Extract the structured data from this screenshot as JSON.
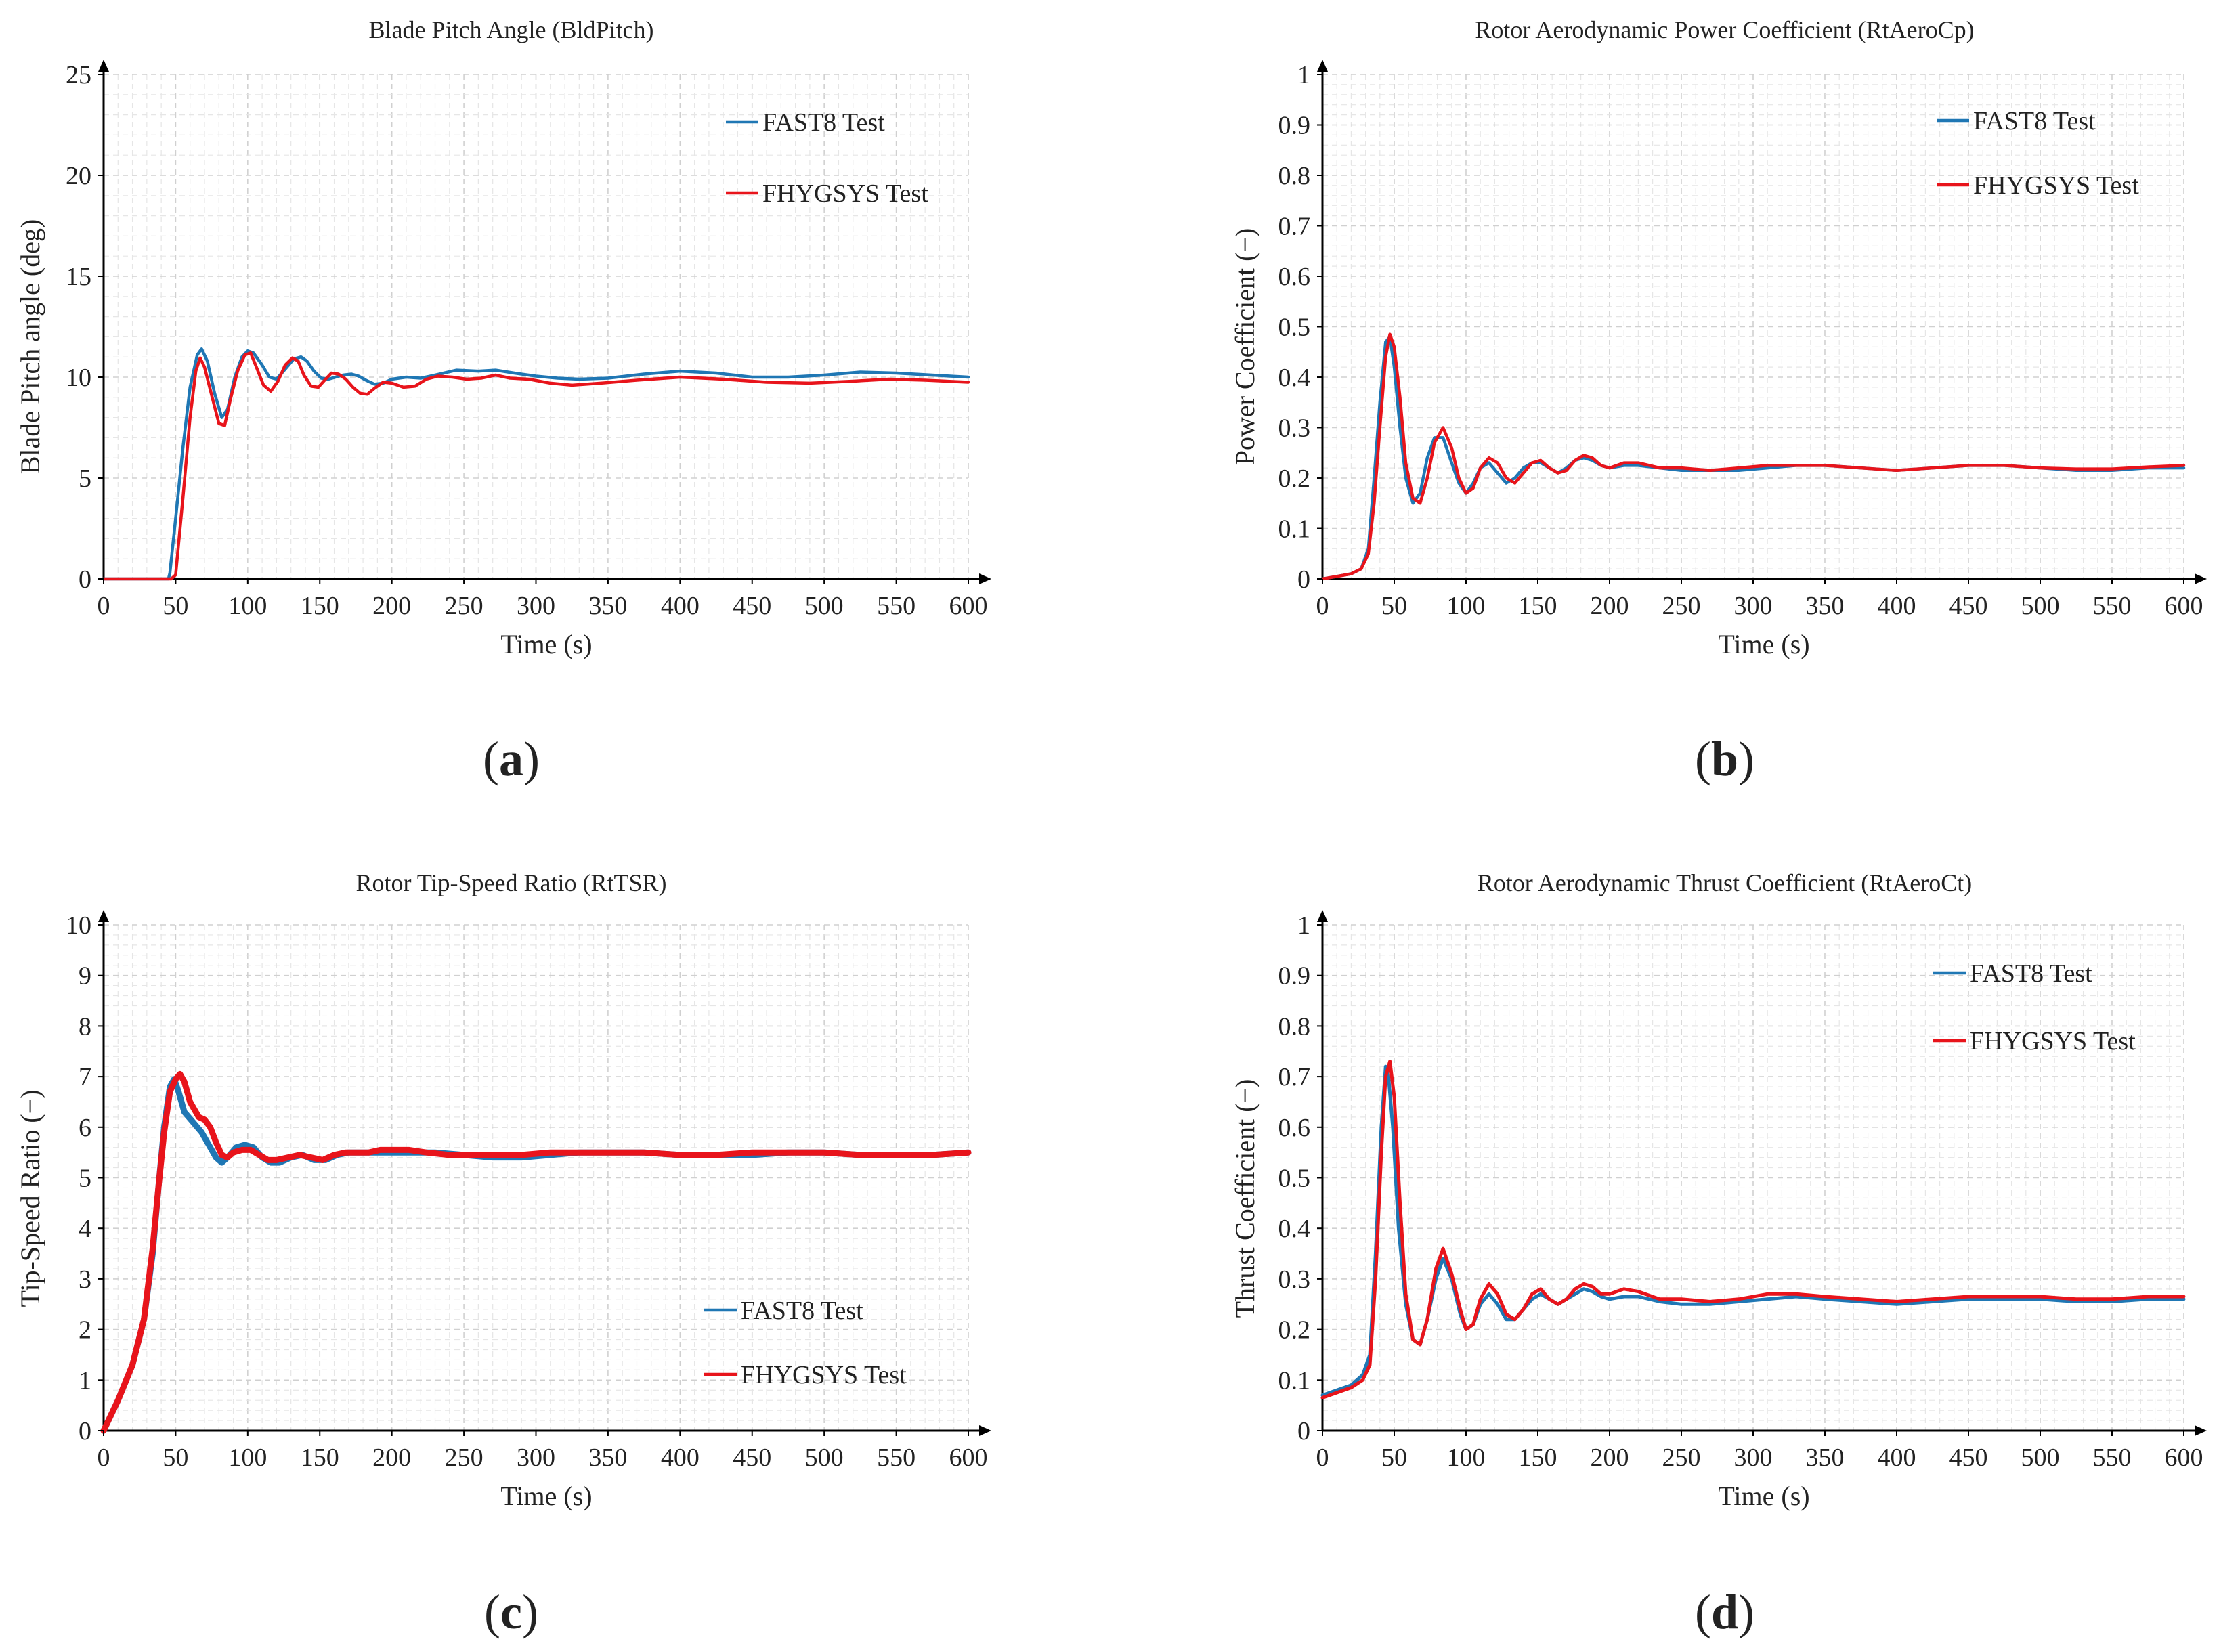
{
  "chart_data": [
    {
      "panel": "(a)",
      "panel_letter": "a",
      "type": "line",
      "title": "Blade Pitch Angle (BldPitch)",
      "xlabel": "Time (s)",
      "ylabel": "Blade Pitch angle (deg)",
      "xlim": [
        0,
        600
      ],
      "ylim": [
        0,
        25
      ],
      "xticks": [
        0,
        50,
        100,
        150,
        200,
        250,
        300,
        350,
        400,
        450,
        500,
        550,
        600
      ],
      "yticks": [
        0,
        5,
        10,
        15,
        20,
        25
      ],
      "ytick_labels": [
        "0",
        "5",
        "10",
        "15",
        "20",
        "25"
      ],
      "grid": true,
      "legend_position": "top-right",
      "series": [
        {
          "name": "FAST8 Test",
          "color": "#1f77b4",
          "x": [
            0,
            45,
            46,
            50,
            55,
            60,
            65,
            68,
            72,
            77,
            82,
            86,
            91,
            96,
            100,
            104,
            110,
            115,
            120,
            126,
            132,
            137,
            141,
            146,
            151,
            156,
            161,
            166,
            172,
            177,
            182,
            188,
            194,
            200,
            210,
            220,
            230,
            245,
            260,
            272,
            285,
            300,
            315,
            330,
            350,
            375,
            400,
            425,
            450,
            475,
            500,
            525,
            550,
            575,
            600
          ],
          "y": [
            0,
            0,
            0.3,
            3,
            6.5,
            9.5,
            11.1,
            11.4,
            10.8,
            9.2,
            8.0,
            8.4,
            10.0,
            11.0,
            11.3,
            11.2,
            10.6,
            10.0,
            9.9,
            10.4,
            10.9,
            11.0,
            10.8,
            10.3,
            9.95,
            9.9,
            10.0,
            10.1,
            10.15,
            10.05,
            9.85,
            9.65,
            9.7,
            9.9,
            10.0,
            9.95,
            10.1,
            10.35,
            10.3,
            10.35,
            10.2,
            10.05,
            9.95,
            9.9,
            9.95,
            10.15,
            10.3,
            10.2,
            10.0,
            10.0,
            10.1,
            10.25,
            10.2,
            10.1,
            10.0
          ]
        },
        {
          "name": "FHYGSYS Test",
          "color": "#e8141b",
          "x": [
            0,
            44,
            47,
            50,
            55,
            60,
            64,
            67,
            70,
            75,
            80,
            84,
            88,
            93,
            98,
            102,
            106,
            111,
            116,
            121,
            126,
            131,
            135,
            139,
            144,
            149,
            154,
            158,
            163,
            168,
            173,
            178,
            183,
            188,
            194,
            200,
            208,
            216,
            224,
            232,
            242,
            252,
            262,
            272,
            282,
            295,
            310,
            325,
            345,
            370,
            400,
            430,
            460,
            490,
            520,
            545,
            570,
            600
          ],
          "y": [
            0,
            0,
            0,
            0.2,
            4,
            8,
            10.3,
            10.95,
            10.5,
            9.1,
            7.7,
            7.6,
            8.9,
            10.3,
            11.1,
            11.2,
            10.5,
            9.6,
            9.3,
            9.8,
            10.6,
            10.95,
            10.8,
            10.1,
            9.55,
            9.5,
            9.9,
            10.2,
            10.15,
            9.9,
            9.5,
            9.2,
            9.15,
            9.45,
            9.75,
            9.7,
            9.5,
            9.55,
            9.9,
            10.05,
            10.0,
            9.9,
            9.95,
            10.1,
            9.95,
            9.9,
            9.7,
            9.6,
            9.7,
            9.85,
            10.0,
            9.9,
            9.75,
            9.7,
            9.8,
            9.9,
            9.85,
            9.75
          ]
        }
      ]
    },
    {
      "panel": "(b)",
      "panel_letter": "b",
      "type": "line",
      "title": "Rotor Aerodynamic Power Coefficient (RtAeroCp)",
      "xlabel": "Time (s)",
      "ylabel": "Power Coefficient (−)",
      "xlim": [
        0,
        600
      ],
      "ylim": [
        0,
        1
      ],
      "xticks": [
        0,
        50,
        100,
        150,
        200,
        250,
        300,
        350,
        400,
        450,
        500,
        550,
        600
      ],
      "yticks": [
        0,
        0.1,
        0.2,
        0.3,
        0.4,
        0.5,
        0.6,
        0.7,
        0.8,
        0.9,
        1
      ],
      "ytick_labels": [
        "0",
        "0.1",
        "0.2",
        "0.3",
        "0.4",
        "0.5",
        "0.6",
        "0.7",
        "0.8",
        "0.9",
        "1"
      ],
      "grid": true,
      "legend_position": "top-right",
      "series": [
        {
          "name": "FAST8 Test",
          "color": "#1f77b4",
          "x": [
            0,
            10,
            20,
            27,
            32,
            36,
            40,
            44,
            47,
            50,
            54,
            58,
            63,
            68,
            73,
            78,
            84,
            90,
            95,
            100,
            105,
            110,
            116,
            122,
            128,
            134,
            140,
            146,
            152,
            158,
            164,
            170,
            176,
            182,
            188,
            194,
            200,
            210,
            220,
            235,
            250,
            270,
            290,
            310,
            330,
            350,
            375,
            400,
            425,
            450,
            475,
            500,
            525,
            550,
            575,
            600
          ],
          "y": [
            0.0,
            0.005,
            0.01,
            0.02,
            0.06,
            0.2,
            0.35,
            0.47,
            0.48,
            0.42,
            0.3,
            0.2,
            0.15,
            0.17,
            0.24,
            0.28,
            0.28,
            0.23,
            0.19,
            0.17,
            0.19,
            0.22,
            0.23,
            0.21,
            0.19,
            0.2,
            0.22,
            0.23,
            0.23,
            0.22,
            0.21,
            0.22,
            0.235,
            0.24,
            0.235,
            0.225,
            0.22,
            0.225,
            0.225,
            0.22,
            0.215,
            0.215,
            0.215,
            0.22,
            0.225,
            0.225,
            0.22,
            0.215,
            0.22,
            0.225,
            0.225,
            0.22,
            0.215,
            0.215,
            0.22,
            0.22
          ]
        },
        {
          "name": "FHYGSYS Test",
          "color": "#e8141b",
          "x": [
            0,
            10,
            20,
            27,
            32,
            36,
            40,
            44,
            47,
            50,
            54,
            58,
            63,
            68,
            73,
            78,
            84,
            90,
            95,
            100,
            105,
            110,
            116,
            122,
            128,
            134,
            140,
            146,
            152,
            158,
            164,
            170,
            176,
            182,
            188,
            194,
            200,
            210,
            220,
            235,
            250,
            270,
            290,
            310,
            330,
            350,
            375,
            400,
            425,
            450,
            475,
            500,
            525,
            550,
            575,
            600
          ],
          "y": [
            0.0,
            0.005,
            0.01,
            0.02,
            0.05,
            0.15,
            0.3,
            0.44,
            0.485,
            0.46,
            0.36,
            0.23,
            0.16,
            0.15,
            0.2,
            0.27,
            0.3,
            0.26,
            0.2,
            0.17,
            0.18,
            0.22,
            0.24,
            0.23,
            0.2,
            0.19,
            0.21,
            0.23,
            0.235,
            0.22,
            0.21,
            0.215,
            0.235,
            0.245,
            0.24,
            0.225,
            0.22,
            0.23,
            0.23,
            0.22,
            0.22,
            0.215,
            0.22,
            0.225,
            0.225,
            0.225,
            0.22,
            0.215,
            0.22,
            0.225,
            0.225,
            0.22,
            0.218,
            0.218,
            0.222,
            0.225
          ]
        }
      ]
    },
    {
      "panel": "(c)",
      "panel_letter": "c",
      "type": "line",
      "title": "Rotor Tip-Speed Ratio (RtTSR)",
      "xlabel": "Time (s)",
      "ylabel": "Tip-Speed Ratio (−)",
      "xlim": [
        0,
        600
      ],
      "ylim": [
        0,
        10
      ],
      "xticks": [
        0,
        50,
        100,
        150,
        200,
        250,
        300,
        350,
        400,
        450,
        500,
        550,
        600
      ],
      "yticks": [
        0,
        1,
        2,
        3,
        4,
        5,
        6,
        7,
        8,
        9,
        10
      ],
      "ytick_labels": [
        "0",
        "1",
        "2",
        "3",
        "4",
        "5",
        "6",
        "7",
        "8",
        "9",
        "10"
      ],
      "grid": true,
      "legend_position": "bottom-right",
      "series": [
        {
          "name": "FAST8 Test",
          "color": "#1f77b4",
          "x": [
            0,
            10,
            20,
            28,
            34,
            38,
            42,
            46,
            49,
            52,
            56,
            62,
            68,
            74,
            78,
            82,
            86,
            92,
            98,
            104,
            110,
            116,
            122,
            130,
            138,
            146,
            154,
            162,
            170,
            180,
            190,
            200,
            215,
            230,
            250,
            270,
            290,
            310,
            330,
            350,
            375,
            400,
            425,
            450,
            475,
            500,
            525,
            550,
            575,
            600
          ],
          "y": [
            0,
            0.6,
            1.3,
            2.2,
            3.5,
            4.8,
            6.0,
            6.8,
            6.95,
            6.7,
            6.3,
            6.1,
            5.9,
            5.6,
            5.4,
            5.3,
            5.4,
            5.6,
            5.65,
            5.6,
            5.4,
            5.3,
            5.3,
            5.4,
            5.45,
            5.35,
            5.35,
            5.45,
            5.5,
            5.5,
            5.5,
            5.5,
            5.5,
            5.5,
            5.45,
            5.4,
            5.4,
            5.45,
            5.5,
            5.5,
            5.5,
            5.45,
            5.45,
            5.45,
            5.5,
            5.5,
            5.45,
            5.45,
            5.45,
            5.5
          ]
        },
        {
          "name": "FHYGSYS Test",
          "color": "#e8141b",
          "x": [
            0,
            10,
            20,
            28,
            34,
            38,
            42,
            46,
            50,
            53,
            56,
            60,
            66,
            70,
            74,
            78,
            82,
            86,
            90,
            96,
            102,
            108,
            114,
            120,
            128,
            136,
            144,
            152,
            160,
            168,
            176,
            184,
            192,
            200,
            212,
            224,
            240,
            255,
            270,
            290,
            310,
            330,
            350,
            375,
            400,
            425,
            450,
            475,
            500,
            525,
            550,
            575,
            600
          ],
          "y": [
            0,
            0.6,
            1.3,
            2.2,
            3.6,
            4.8,
            5.9,
            6.7,
            6.95,
            7.05,
            6.9,
            6.5,
            6.2,
            6.15,
            6.0,
            5.7,
            5.45,
            5.4,
            5.5,
            5.55,
            5.55,
            5.45,
            5.35,
            5.35,
            5.4,
            5.45,
            5.4,
            5.35,
            5.45,
            5.5,
            5.5,
            5.5,
            5.55,
            5.55,
            5.55,
            5.5,
            5.45,
            5.45,
            5.45,
            5.45,
            5.5,
            5.5,
            5.5,
            5.5,
            5.45,
            5.45,
            5.5,
            5.5,
            5.5,
            5.45,
            5.45,
            5.45,
            5.5
          ]
        }
      ]
    },
    {
      "panel": "(d)",
      "panel_letter": "d",
      "type": "line",
      "title": "Rotor Aerodynamic Thrust Coefficient (RtAeroCt)",
      "xlabel": "Time (s)",
      "ylabel": "Thrust Coefficient (−)",
      "xlim": [
        0,
        600
      ],
      "ylim": [
        0,
        1
      ],
      "xticks": [
        0,
        50,
        100,
        150,
        200,
        250,
        300,
        350,
        400,
        450,
        500,
        550,
        600
      ],
      "yticks": [
        0,
        0.1,
        0.2,
        0.3,
        0.4,
        0.5,
        0.6,
        0.7,
        0.8,
        0.9,
        1
      ],
      "ytick_labels": [
        "0",
        "0.1",
        "0.2",
        "0.3",
        "0.4",
        "0.5",
        "0.6",
        "0.7",
        "0.8",
        "0.9",
        "1"
      ],
      "grid": true,
      "legend_position": "top-right",
      "series": [
        {
          "name": "FAST8 Test",
          "color": "#1f77b4",
          "x": [
            0,
            10,
            20,
            28,
            33,
            37,
            41,
            44,
            46,
            49,
            53,
            58,
            63,
            68,
            73,
            79,
            84,
            90,
            96,
            100,
            105,
            110,
            116,
            122,
            128,
            134,
            140,
            146,
            152,
            158,
            164,
            170,
            176,
            182,
            188,
            194,
            200,
            210,
            220,
            235,
            250,
            270,
            290,
            310,
            330,
            350,
            375,
            400,
            425,
            450,
            475,
            500,
            525,
            550,
            575,
            600
          ],
          "y": [
            0.07,
            0.08,
            0.09,
            0.11,
            0.15,
            0.35,
            0.6,
            0.72,
            0.7,
            0.6,
            0.4,
            0.25,
            0.18,
            0.17,
            0.22,
            0.3,
            0.34,
            0.3,
            0.23,
            0.2,
            0.21,
            0.25,
            0.27,
            0.25,
            0.22,
            0.22,
            0.24,
            0.26,
            0.27,
            0.26,
            0.25,
            0.26,
            0.27,
            0.28,
            0.275,
            0.265,
            0.26,
            0.265,
            0.265,
            0.255,
            0.25,
            0.25,
            0.255,
            0.26,
            0.265,
            0.26,
            0.255,
            0.25,
            0.255,
            0.26,
            0.26,
            0.26,
            0.255,
            0.255,
            0.26,
            0.26
          ]
        },
        {
          "name": "FHYGSYS Test",
          "color": "#e8141b",
          "x": [
            0,
            10,
            20,
            28,
            33,
            37,
            41,
            44,
            47,
            50,
            54,
            58,
            63,
            68,
            73,
            79,
            84,
            90,
            96,
            100,
            105,
            110,
            116,
            122,
            128,
            134,
            140,
            146,
            152,
            158,
            164,
            170,
            176,
            182,
            188,
            194,
            200,
            210,
            220,
            235,
            250,
            270,
            290,
            310,
            330,
            350,
            375,
            400,
            425,
            450,
            475,
            500,
            525,
            550,
            575,
            600
          ],
          "y": [
            0.065,
            0.075,
            0.085,
            0.1,
            0.13,
            0.3,
            0.55,
            0.7,
            0.73,
            0.66,
            0.45,
            0.27,
            0.18,
            0.17,
            0.22,
            0.32,
            0.36,
            0.31,
            0.24,
            0.2,
            0.21,
            0.26,
            0.29,
            0.27,
            0.23,
            0.22,
            0.24,
            0.27,
            0.28,
            0.26,
            0.25,
            0.26,
            0.28,
            0.29,
            0.285,
            0.27,
            0.27,
            0.28,
            0.275,
            0.26,
            0.26,
            0.255,
            0.26,
            0.27,
            0.27,
            0.265,
            0.26,
            0.255,
            0.26,
            0.265,
            0.265,
            0.265,
            0.26,
            0.26,
            0.265,
            0.265
          ]
        }
      ]
    }
  ]
}
